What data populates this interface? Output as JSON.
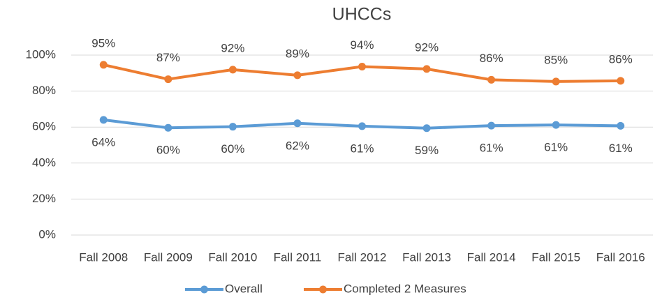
{
  "chart_data": {
    "type": "line",
    "title": "UHCCs",
    "categories": [
      "Fall 2008",
      "Fall 2009",
      "Fall 2010",
      "Fall 2011",
      "Fall 2012",
      "Fall 2013",
      "Fall 2014",
      "Fall 2015",
      "Fall 2016"
    ],
    "series": [
      {
        "name": "Overall",
        "color": "#5b9bd5",
        "values": [
          64.0,
          59.6,
          60.2,
          62.1,
          60.5,
          59.4,
          60.8,
          61.2,
          60.7
        ],
        "value_labels": [
          "64%",
          "60%",
          "60%",
          "62%",
          "61%",
          "59%",
          "61%",
          "61%",
          "61%"
        ]
      },
      {
        "name": "Completed 2 Measures",
        "color": "#ed7d31",
        "values": [
          94.6,
          86.6,
          91.9,
          88.8,
          93.6,
          92.3,
          86.3,
          85.3,
          85.7
        ],
        "value_labels": [
          "95%",
          "87%",
          "92%",
          "89%",
          "94%",
          "92%",
          "86%",
          "85%",
          "86%"
        ]
      }
    ],
    "ylim": [
      0,
      100
    ],
    "yticks": [
      {
        "value": 0,
        "label": "0%"
      },
      {
        "value": 20,
        "label": "20%"
      },
      {
        "value": 40,
        "label": "40%"
      },
      {
        "value": 60,
        "label": "60%"
      },
      {
        "value": 80,
        "label": "80%"
      },
      {
        "value": 100,
        "label": "100%"
      }
    ],
    "grid": true,
    "legend": "bottom"
  }
}
